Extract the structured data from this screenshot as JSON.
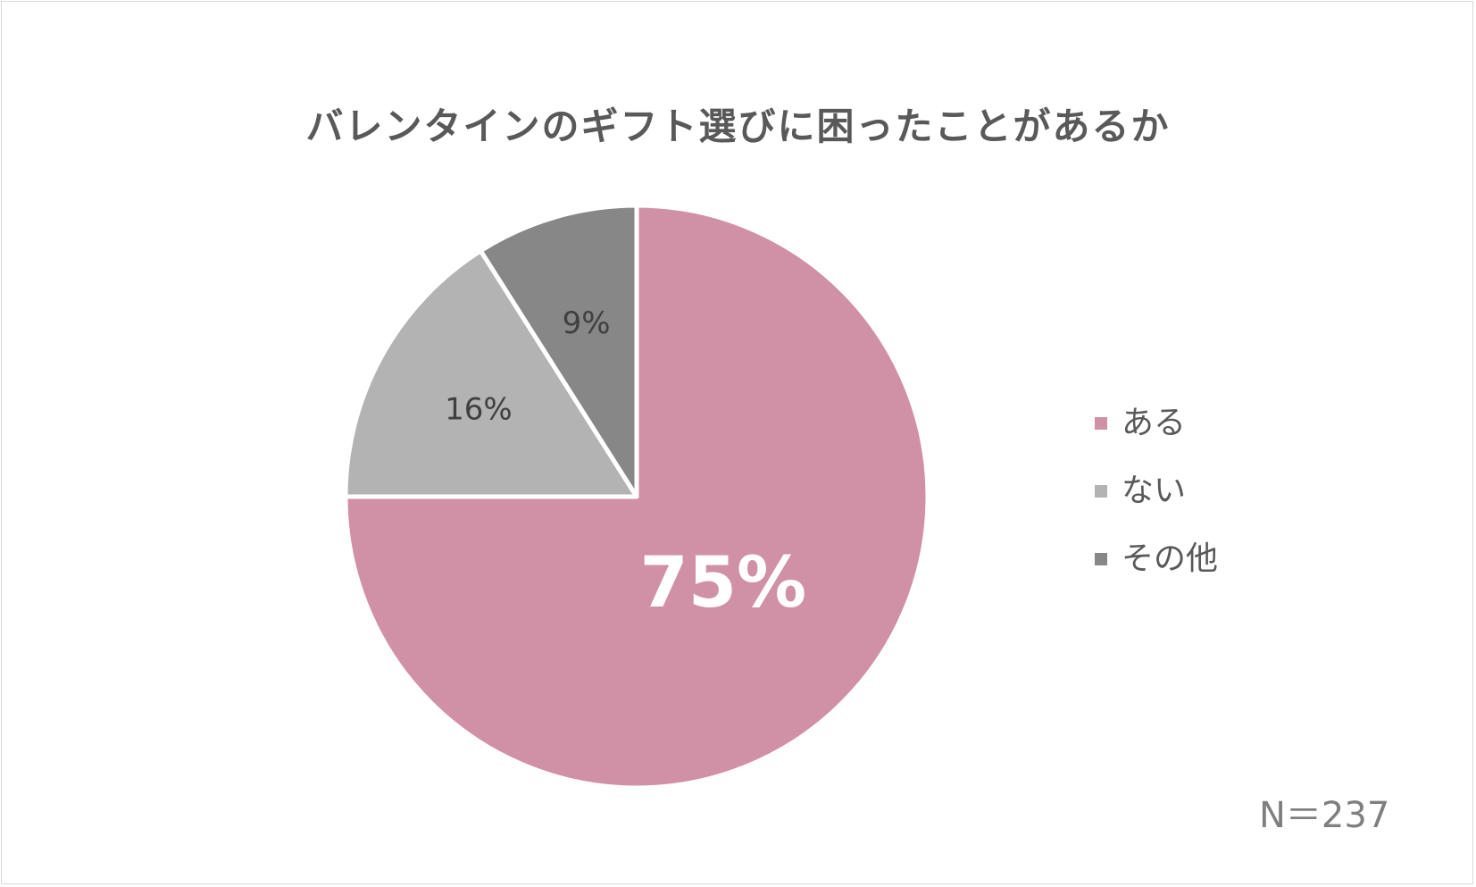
{
  "chart_data": {
    "type": "pie",
    "title": "バレンタインのギフト選びに困ったことがあるか",
    "slices": [
      {
        "label": "ある",
        "value": 75,
        "display": "75%",
        "color": "#d090a5",
        "label_color": "#ffffff",
        "label_emphasis": "large"
      },
      {
        "label": "ない",
        "value": 16,
        "display": "16%",
        "color": "#b3b3b3",
        "label_color": "#404040",
        "label_emphasis": "normal"
      },
      {
        "label": "その他",
        "value": 9,
        "display": "9%",
        "color": "#878787",
        "label_color": "#404040",
        "label_emphasis": "normal"
      }
    ],
    "start_angle": "12 o'clock",
    "direction": "clockwise",
    "legend_position": "right",
    "annotation": "N＝237"
  }
}
